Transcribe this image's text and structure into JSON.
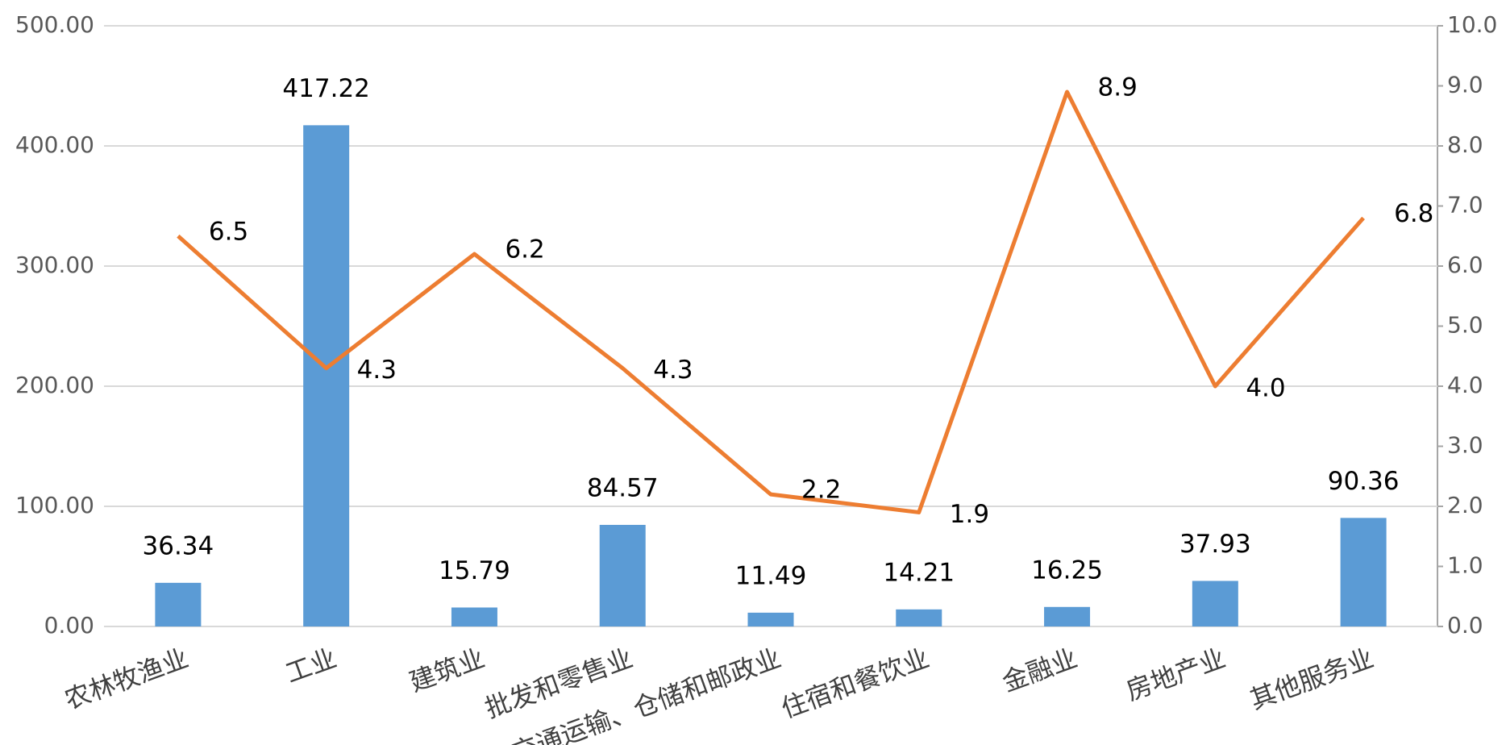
{
  "chart_data": {
    "type": "bar",
    "categories": [
      "农林牧渔业",
      "工业",
      "建筑业",
      "批发和零售业",
      "交通运输、仓储和邮政业",
      "住宿和餐饮业",
      "金融业",
      "房地产业",
      "其他服务业"
    ],
    "series": [
      {
        "type": "bar",
        "color": "#5b9bd5",
        "values": [
          36.34,
          417.22,
          15.79,
          84.57,
          11.49,
          14.21,
          16.25,
          37.93,
          90.36
        ],
        "value_labels": [
          "36.34",
          "417.22",
          "15.79",
          "84.57",
          "11.49",
          "14.21",
          "16.25",
          "37.93",
          "90.36"
        ]
      },
      {
        "type": "line",
        "color": "#ed7d31",
        "axis": "y2",
        "values": [
          6.5,
          4.3,
          6.2,
          4.3,
          2.2,
          1.9,
          8.9,
          4.0,
          6.8
        ],
        "value_labels": [
          "6.5",
          "4.3",
          "6.2",
          "4.3",
          "2.2",
          "1.9",
          "8.9",
          "4.0",
          "6.8"
        ]
      }
    ],
    "ylim": [
      0,
      500
    ],
    "yticks": [
      {
        "value": 0,
        "label": "0.00"
      },
      {
        "value": 100,
        "label": "100.00"
      },
      {
        "value": 200,
        "label": "200.00"
      },
      {
        "value": 300,
        "label": "300.00"
      },
      {
        "value": 400,
        "label": "400.00"
      },
      {
        "value": 500,
        "label": "500.00"
      }
    ],
    "y2lim": [
      0,
      10
    ],
    "y2ticks": [
      {
        "value": 0,
        "label": "0.0"
      },
      {
        "value": 1,
        "label": "1.0"
      },
      {
        "value": 2,
        "label": "2.0"
      },
      {
        "value": 3,
        "label": "3.0"
      },
      {
        "value": 4,
        "label": "4.0"
      },
      {
        "value": 5,
        "label": "5.0"
      },
      {
        "value": 6,
        "label": "6.0"
      },
      {
        "value": 7,
        "label": "7.0"
      },
      {
        "value": 8,
        "label": "8.0"
      },
      {
        "value": 9,
        "label": "9.0"
      },
      {
        "value": 10,
        "label": "10.0"
      }
    ],
    "grid": true
  }
}
